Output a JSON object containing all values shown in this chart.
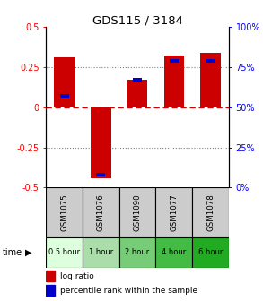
{
  "title": "GDS115 / 3184",
  "samples": [
    "GSM1075",
    "GSM1076",
    "GSM1090",
    "GSM1077",
    "GSM1078"
  ],
  "time_labels": [
    "0.5 hour",
    "1 hour",
    "2 hour",
    "4 hour",
    "6 hour"
  ],
  "time_colors": [
    "#ccffcc",
    "#99ee99",
    "#66dd66",
    "#33cc33",
    "#00bb00"
  ],
  "log_ratios": [
    0.31,
    -0.44,
    0.17,
    0.32,
    0.34
  ],
  "percentile_ranks": [
    0.57,
    0.08,
    0.67,
    0.79,
    0.79
  ],
  "bar_width": 0.55,
  "ylim": [
    -0.5,
    0.5
  ],
  "yticks_left": [
    -0.5,
    -0.25,
    0,
    0.25,
    0.5
  ],
  "ytick_labels_left": [
    "-0.5",
    "-0.25",
    "0",
    "0.25",
    "0.5"
  ],
  "ytick_labels_right": [
    "0%",
    "25%",
    "50%",
    "75%",
    "100%"
  ],
  "bar_color": "#cc0000",
  "pct_color": "#0000cc",
  "bg_color": "#ffffff",
  "zero_line_color": "#cc0000",
  "grid_color": "#808080",
  "sample_bg": "#cccccc",
  "legend_ratio_label": "log ratio",
  "legend_pct_label": "percentile rank within the sample"
}
